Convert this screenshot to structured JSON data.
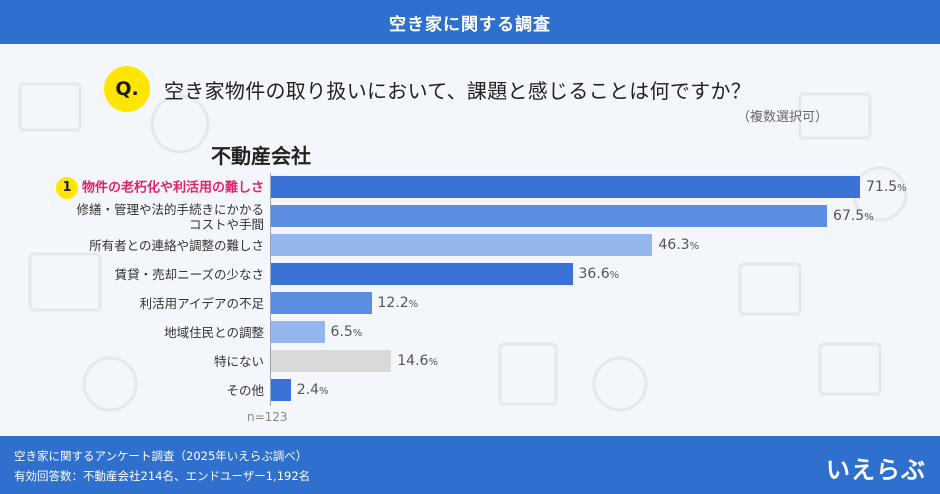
{
  "header": {
    "title": "空き家に関する調査"
  },
  "question": {
    "badge": "Q.",
    "text": "空き家物件の取り扱いにおいて、課題と感じることは何ですか？",
    "note": "（複数選択可）"
  },
  "segment": "不動産会社",
  "rank_badge": "1",
  "colors": {
    "bar_primary": "#3a72d6",
    "bar_secondary": "#5b8ee0",
    "bar_light": "#93b7ec",
    "bar_gray": "#d9d9d9",
    "highlight": "#e3216f",
    "accent": "#ffe600"
  },
  "chart_data": {
    "type": "bar",
    "orientation": "horizontal",
    "xlim": [
      0,
      80
    ],
    "unit": "%",
    "categories": [
      "物件の老朽化や利活用の難しさ",
      "修繕・管理や法的手続きにかかるコストや手間",
      "所有者との連絡や調整の難しさ",
      "賃貸・売却ニーズの少なさ",
      "利活用アイデアの不足",
      "地域住民との調整",
      "特にない",
      "その他"
    ],
    "values": [
      71.5,
      67.5,
      46.3,
      36.6,
      12.2,
      6.5,
      14.6,
      2.4
    ],
    "bar_colors": [
      "#3a72d6",
      "#5b8ee0",
      "#93b7ec",
      "#3a72d6",
      "#5b8ee0",
      "#93b7ec",
      "#d9d9d9",
      "#3a72d6"
    ],
    "n": "n=123"
  },
  "footer": {
    "line1": "空き家に関するアンケート調査（2025年いえらぶ調べ）",
    "line2": "有効回答数：不動産会社214名、エンドユーザー1,192名",
    "logo": "いえらぶ"
  }
}
